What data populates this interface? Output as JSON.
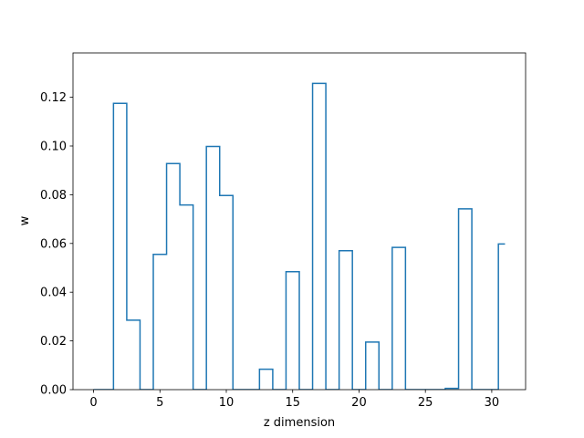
{
  "chart_data": {
    "type": "line",
    "drawstyle": "steps-mid",
    "title": "",
    "xlabel": "z dimension",
    "ylabel": "w",
    "xlim": [
      -1.55,
      32.55
    ],
    "ylim": [
      0.0,
      0.1382
    ],
    "xticks": [
      0,
      5,
      10,
      15,
      20,
      25,
      30
    ],
    "xtick_labels": [
      "0",
      "5",
      "10",
      "15",
      "20",
      "25",
      "30"
    ],
    "yticks": [
      0.0,
      0.02,
      0.04,
      0.06,
      0.08,
      0.1,
      0.12
    ],
    "ytick_labels": [
      "0.00",
      "0.02",
      "0.04",
      "0.06",
      "0.08",
      "0.10",
      "0.12"
    ],
    "grid": false,
    "series": [
      {
        "color": "#1f77b4",
        "x": [
          0,
          1,
          2,
          3,
          4,
          5,
          6,
          7,
          8,
          9,
          10,
          11,
          12,
          13,
          14,
          15,
          16,
          17,
          18,
          19,
          20,
          21,
          22,
          23,
          24,
          25,
          26,
          27,
          28,
          29,
          30,
          31
        ],
        "values": [
          0.0,
          0.0,
          0.1175,
          0.0285,
          0.0,
          0.0555,
          0.0928,
          0.0758,
          0.0,
          0.0998,
          0.0797,
          0.0,
          0.0,
          0.0084,
          0.0,
          0.0484,
          0.0,
          0.1257,
          0.0,
          0.057,
          0.0,
          0.0195,
          0.0,
          0.0584,
          0.0,
          0.0,
          0.0,
          0.0005,
          0.0742,
          0.0,
          0.0,
          0.0598
        ]
      }
    ]
  }
}
